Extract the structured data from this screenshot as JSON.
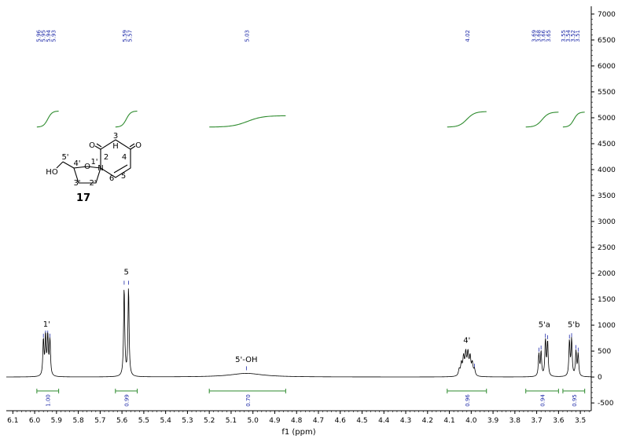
{
  "chart_data": {
    "type": "line",
    "title": "",
    "xlabel": "f1 (ppm)",
    "ylabel": "",
    "xlim": [
      6.13,
      3.45
    ],
    "ylim": [
      -650,
      7150
    ],
    "x_ticks": [
      "6.1",
      "6.0",
      "5.9",
      "5.8",
      "5.7",
      "5.6",
      "5.5",
      "5.4",
      "5.3",
      "5.2",
      "5.1",
      "5.0",
      "4.9",
      "4.8",
      "4.7",
      "4.6",
      "4.5",
      "4.4",
      "4.3",
      "4.2",
      "4.1",
      "4.0",
      "3.9",
      "3.8",
      "3.7",
      "3.6",
      "3.5"
    ],
    "y_ticks": [
      "7000",
      "6500",
      "6000",
      "5500",
      "5000",
      "4500",
      "4000",
      "3500",
      "3000",
      "2500",
      "2000",
      "1500",
      "1000",
      "500",
      "0",
      "-500"
    ],
    "peaks": [
      {
        "center": 5.945,
        "lines": [
          5.96,
          5.95,
          5.94,
          5.93
        ],
        "heights": [
          700,
          760,
          760,
          700
        ],
        "width": 0.003
      },
      {
        "center": 5.58,
        "lines": [
          5.59,
          5.57
        ],
        "heights": [
          1720,
          1720
        ],
        "width": 0.003
      },
      {
        "center": 5.03,
        "lines": [
          5.03
        ],
        "heights": [
          70
        ],
        "width": 0.09
      },
      {
        "center": 4.02,
        "lines": [
          3.985,
          3.995,
          4.005,
          4.015,
          4.025,
          4.035,
          4.045,
          4.055
        ],
        "heights": [
          120,
          230,
          340,
          410,
          410,
          340,
          230,
          120
        ],
        "width": 0.004
      },
      {
        "center": 3.665,
        "lines": [
          3.69,
          3.68,
          3.66,
          3.65
        ],
        "heights": [
          430,
          470,
          700,
          670
        ],
        "width": 0.003
      },
      {
        "center": 3.53,
        "lines": [
          3.55,
          3.54,
          3.52,
          3.51
        ],
        "heights": [
          680,
          710,
          480,
          430
        ],
        "width": 0.003
      }
    ],
    "peak_picks": [
      {
        "labels": [
          "5.96",
          "5.95",
          "5.94",
          "5.93"
        ],
        "positions": [
          5.985,
          5.962,
          5.939,
          5.916
        ],
        "target": 5.945
      },
      {
        "labels": [
          "5.59",
          "5.57"
        ],
        "positions": [
          5.59,
          5.567
        ],
        "target": 5.58
      },
      {
        "labels": [
          "5.03"
        ],
        "positions": [
          5.03
        ],
        "target": 5.03
      },
      {
        "labels": [
          "4.02"
        ],
        "positions": [
          4.02
        ],
        "target": 4.02
      },
      {
        "labels": [
          "3.69",
          "3.68",
          "3.66",
          "3.65"
        ],
        "positions": [
          3.715,
          3.693,
          3.671,
          3.649
        ],
        "target": 3.665
      },
      {
        "labels": [
          "3.55",
          "3.54",
          "3.52",
          "3.51"
        ],
        "positions": [
          3.58,
          3.558,
          3.536,
          3.514
        ],
        "target": 3.53
      }
    ],
    "integrals": [
      {
        "from": 5.99,
        "to": 5.89,
        "value": "1.00",
        "curve_start": 4820,
        "curve_end": 5130
      },
      {
        "from": 5.63,
        "to": 5.53,
        "value": "0.99",
        "curve_start": 4820,
        "curve_end": 5130
      },
      {
        "from": 5.2,
        "to": 4.85,
        "value": "0.70",
        "curve_start": 4820,
        "curve_end": 5040
      },
      {
        "from": 4.11,
        "to": 3.93,
        "value": "0.96",
        "curve_start": 4820,
        "curve_end": 5120
      },
      {
        "from": 3.75,
        "to": 3.6,
        "value": "0.94",
        "curve_start": 4820,
        "curve_end": 5110
      },
      {
        "from": 3.58,
        "to": 3.48,
        "value": "0.95",
        "curve_start": 4820,
        "curve_end": 5110
      }
    ],
    "annotations": [
      {
        "label": "1'",
        "x": 5.945,
        "y": 970
      },
      {
        "label": "5",
        "x": 5.58,
        "y": 1980
      },
      {
        "label": "5'-OH",
        "x": 5.03,
        "y": 290
      },
      {
        "label": "4'",
        "x": 4.02,
        "y": 660
      },
      {
        "label": "5'a",
        "x": 3.665,
        "y": 960
      },
      {
        "label": "5'b",
        "x": 3.53,
        "y": 960
      }
    ],
    "grid": false
  },
  "molecule": {
    "compound_number": "17",
    "labels": {
      "n3": "3",
      "nh": "H",
      "n": "N",
      "o2": "O",
      "c2": "2",
      "c4": "4",
      "o4": "O",
      "n1": "N",
      "c6": "6",
      "c5": "5",
      "ring_o": "O",
      "c1p": "1'",
      "c2p": "2'",
      "c3p": "3'",
      "c4p": "4'",
      "c5p": "5'",
      "ho": "HO"
    }
  },
  "colors": {
    "spectrum": "#000000",
    "integral": "#2e8b2e",
    "peak_pick": "#1e2aa8"
  }
}
